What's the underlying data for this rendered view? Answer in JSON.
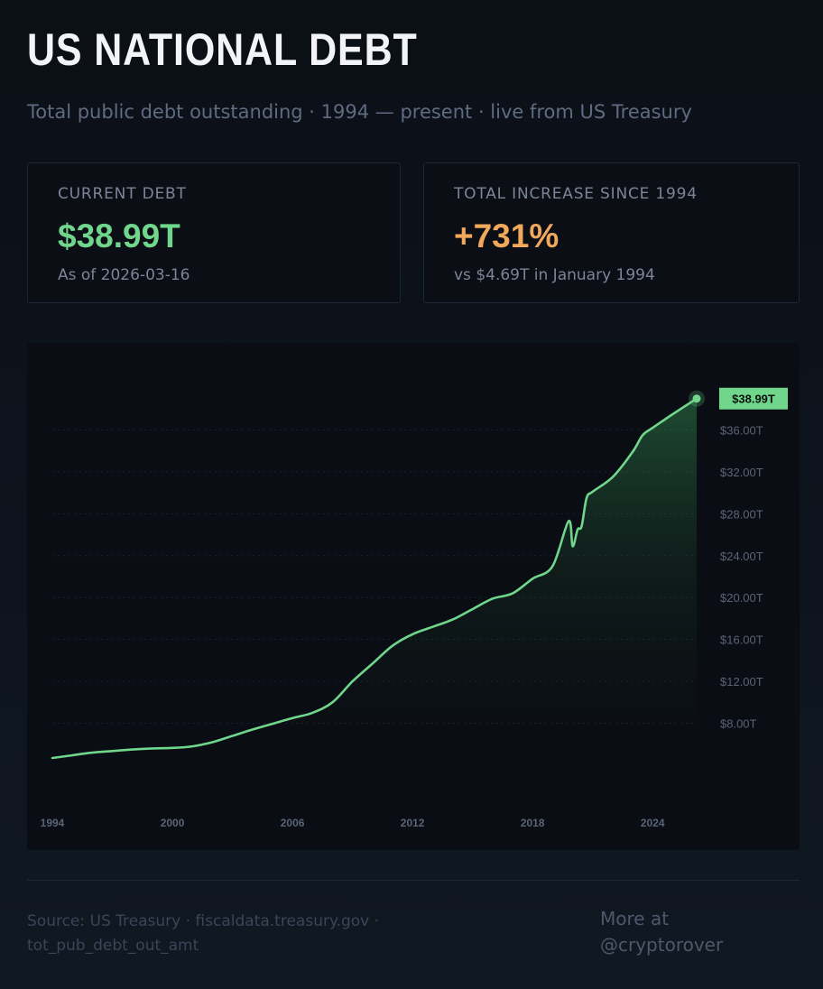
{
  "header": {
    "title": "US NATIONAL DEBT",
    "subtitle": "Total public debt outstanding · 1994 — present · live from US Treasury"
  },
  "cards": {
    "current": {
      "label": "CURRENT DEBT",
      "value": "$38.99T",
      "sub": "As of 2026-03-16",
      "color": "#6fd68c"
    },
    "increase": {
      "label": "TOTAL INCREASE SINCE 1994",
      "value": "+731%",
      "sub": "vs $4.69T in January 1994",
      "color": "#f0a95a"
    }
  },
  "chart_data": {
    "type": "area",
    "title": "",
    "xlabel": "",
    "ylabel": "",
    "x_ticks": [
      "1994",
      "2000",
      "2006",
      "2012",
      "2018",
      "2024"
    ],
    "y_ticks": [
      "$8.00T",
      "$12.00T",
      "$16.00T",
      "$20.00T",
      "$24.00T",
      "$28.00T",
      "$32.00T",
      "$36.00T"
    ],
    "y_tick_values": [
      8,
      12,
      16,
      20,
      24,
      28,
      32,
      36
    ],
    "xlim": [
      1994,
      2026.2
    ],
    "ylim": [
      4,
      40
    ],
    "grid": true,
    "line_color": "#6fd68c",
    "end_label": "$38.99T",
    "series": [
      {
        "x": [
          1994,
          1995,
          1996,
          1997,
          1998,
          1999,
          2000,
          2001,
          2002,
          2003,
          2004,
          2005,
          2006,
          2007,
          2008,
          2009,
          2010,
          2011,
          2012,
          2013,
          2014,
          2015,
          2016,
          2017,
          2018,
          2019,
          2019.8,
          2020.0,
          2020.25,
          2020.45,
          2020.7,
          2021,
          2022,
          2023,
          2023.5,
          2024,
          2025,
          2026.2
        ],
        "values": [
          4.69,
          4.95,
          5.2,
          5.35,
          5.5,
          5.6,
          5.65,
          5.8,
          6.2,
          6.8,
          7.4,
          7.95,
          8.5,
          9.0,
          10.0,
          12.0,
          13.7,
          15.4,
          16.5,
          17.2,
          17.9,
          18.9,
          19.9,
          20.4,
          21.8,
          23.0,
          27.3,
          24.9,
          26.5,
          26.8,
          29.5,
          30.1,
          31.5,
          33.9,
          35.5,
          36.2,
          37.5,
          38.99
        ]
      }
    ]
  },
  "footer": {
    "source_line1": "Source: US Treasury · fiscaldata.treasury.gov ·",
    "source_line2": "tot_pub_debt_out_amt",
    "more_line1": "More at",
    "more_line2": "@cryptorover"
  }
}
